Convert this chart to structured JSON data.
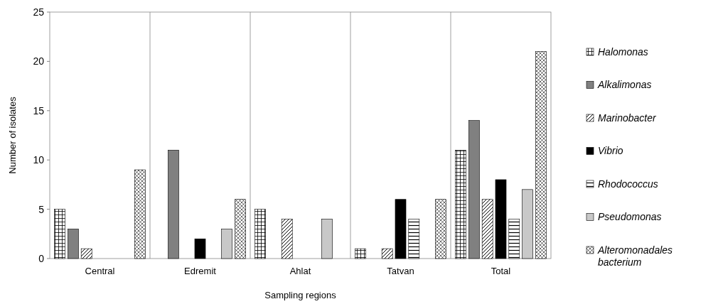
{
  "chart_data": {
    "type": "bar",
    "xlabel": "Sampling regions",
    "ylabel": "Number of isolates",
    "categories": [
      "Central",
      "Edremit",
      "Ahlat",
      "Tatvan",
      "Total"
    ],
    "series": [
      {
        "name": "Halomonas",
        "color": "#000000",
        "values": [
          5,
          0,
          5,
          1,
          11
        ]
      },
      {
        "name": "Alkalimonas",
        "color": "#808080",
        "values": [
          3,
          11,
          0,
          0,
          14
        ]
      },
      {
        "name": "Marinobacter",
        "color": "#000000",
        "values": [
          1,
          0,
          4,
          1,
          6
        ]
      },
      {
        "name": "Vibrio",
        "color": "#000000",
        "values": [
          0,
          2,
          0,
          6,
          8
        ]
      },
      {
        "name": "Rhodococcus",
        "color": "#000000",
        "values": [
          0,
          0,
          0,
          4,
          4
        ]
      },
      {
        "name": "Pseudomonas",
        "color": "#c8c8c8",
        "values": [
          0,
          3,
          4,
          0,
          7
        ]
      },
      {
        "name": "Alteromonadales bacterium",
        "color": "#000000",
        "values": [
          9,
          6,
          0,
          6,
          21
        ]
      }
    ],
    "ylim": [
      0,
      25
    ],
    "yticks": [
      0,
      5,
      10,
      15,
      20,
      25
    ],
    "legend": "right"
  }
}
